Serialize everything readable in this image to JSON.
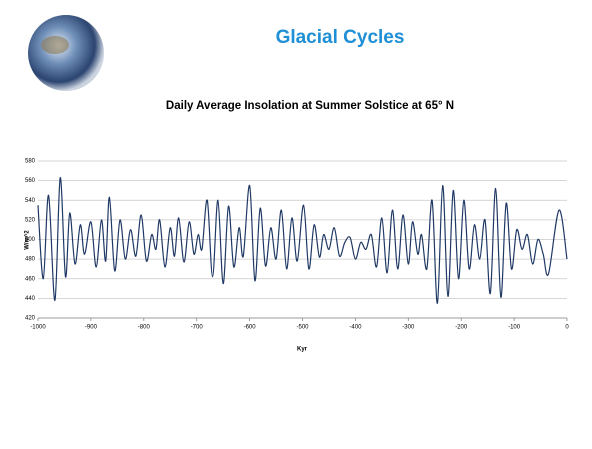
{
  "title": "Glacial Cycles",
  "chart_data": {
    "type": "line",
    "title": "Daily Average Insolation at Summer Solstice at 65° N",
    "x_label": "Kyr",
    "y_label": "W/m^2",
    "x": [
      -1000,
      -990,
      -980,
      -968,
      -958,
      -948,
      -940,
      -930,
      -920,
      -912,
      -900,
      -890,
      -880,
      -872,
      -865,
      -855,
      -845,
      -835,
      -825,
      -815,
      -805,
      -795,
      -785,
      -777,
      -770,
      -760,
      -750,
      -742,
      -734,
      -724,
      -714,
      -705,
      -697,
      -690,
      -680,
      -670,
      -660,
      -650,
      -640,
      -630,
      -620,
      -612,
      -600,
      -590,
      -580,
      -570,
      -560,
      -550,
      -540,
      -530,
      -520,
      -510,
      -498,
      -488,
      -478,
      -468,
      -460,
      -450,
      -440,
      -430,
      -420,
      -410,
      -400,
      -390,
      -380,
      -370,
      -360,
      -350,
      -340,
      -330,
      -320,
      -310,
      -300,
      -292,
      -282,
      -275,
      -265,
      -255,
      -245,
      -235,
      -225,
      -215,
      -205,
      -195,
      -185,
      -175,
      -165,
      -155,
      -145,
      -135,
      -125,
      -115,
      -105,
      -95,
      -85,
      -75,
      -65,
      -55,
      -45,
      -35,
      -15,
      0
    ],
    "series": [
      {
        "name": "Insolation",
        "color": "#1f3864",
        "values": [
          535,
          460,
          545,
          438,
          563,
          462,
          527,
          475,
          515,
          485,
          518,
          472,
          520,
          478,
          543,
          468,
          520,
          480,
          510,
          483,
          525,
          478,
          505,
          490,
          520,
          472,
          512,
          483,
          522,
          477,
          518,
          485,
          505,
          490,
          540,
          462,
          540,
          455,
          534,
          472,
          512,
          483,
          555,
          458,
          532,
          473,
          512,
          480,
          530,
          470,
          522,
          478,
          535,
          470,
          515,
          482,
          505,
          490,
          512,
          483,
          497,
          502,
          480,
          497,
          490,
          505,
          472,
          522,
          466,
          530,
          470,
          525,
          475,
          518,
          485,
          505,
          470,
          540,
          435,
          555,
          442,
          550,
          460,
          540,
          470,
          515,
          480,
          520,
          445,
          552,
          441,
          537,
          470,
          510,
          490,
          505,
          475,
          500,
          485,
          465,
          530,
          480
        ]
      }
    ],
    "xlim": [
      -1000,
      0
    ],
    "ylim": [
      420,
      580
    ],
    "xticks": [
      -1000,
      -900,
      -800,
      -700,
      -600,
      -500,
      -400,
      -300,
      -200,
      -100,
      0
    ],
    "yticks": [
      420,
      440,
      460,
      480,
      500,
      520,
      540,
      560,
      580
    ],
    "grid": true
  }
}
